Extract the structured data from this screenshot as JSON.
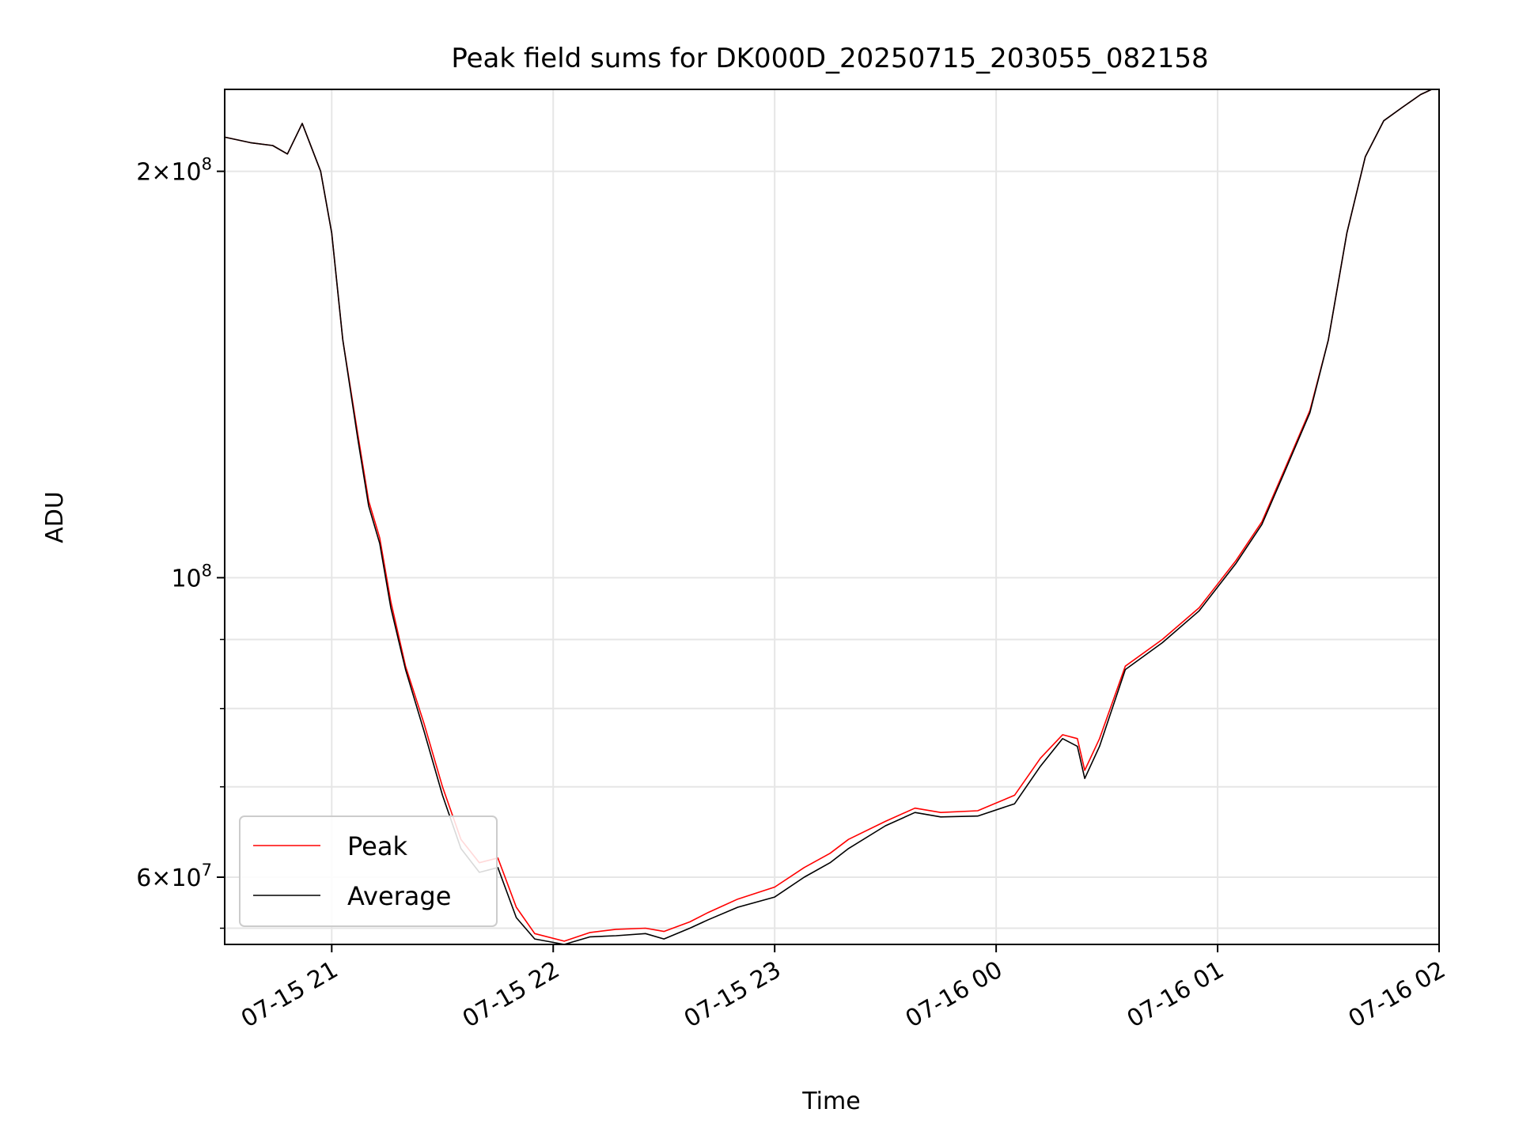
{
  "chart_data": {
    "type": "line",
    "title": "Peak field sums for DK000D_20250715_203055_082158",
    "xlabel": "Time",
    "ylabel": "ADU",
    "yscale": "log",
    "xlim": [
      "2025-07-15 20:31",
      "2025-07-16 02:00"
    ],
    "ylim": [
      53500000,
      230000000
    ],
    "grid": true,
    "legend_position": "lower-left",
    "xticks": [
      "07-15 21",
      "07-15 22",
      "07-15 23",
      "07-16 00",
      "07-16 01",
      "07-16 02"
    ],
    "xtick_times": [
      "2025-07-15 21:00",
      "2025-07-15 22:00",
      "2025-07-15 23:00",
      "2025-07-16 00:00",
      "2025-07-16 01:00",
      "2025-07-16 02:00"
    ],
    "yticks_major": [
      {
        "value": 60000000,
        "mantissa": "6",
        "exponent": "7"
      },
      {
        "value": 100000000,
        "mantissa": "",
        "exponent": "8"
      },
      {
        "value": 200000000,
        "mantissa": "2",
        "exponent": "8"
      }
    ],
    "yticks_minor": [
      55000000,
      70000000,
      80000000,
      90000000
    ],
    "x": [
      "2025-07-15 20:31",
      "2025-07-15 20:38",
      "2025-07-15 20:44",
      "2025-07-15 20:48",
      "2025-07-15 20:52",
      "2025-07-15 20:57",
      "2025-07-15 21:00",
      "2025-07-15 21:03",
      "2025-07-15 21:07",
      "2025-07-15 21:10",
      "2025-07-15 21:13",
      "2025-07-15 21:16",
      "2025-07-15 21:20",
      "2025-07-15 21:25",
      "2025-07-15 21:30",
      "2025-07-15 21:35",
      "2025-07-15 21:40",
      "2025-07-15 21:45",
      "2025-07-15 21:50",
      "2025-07-15 21:55",
      "2025-07-15 22:03",
      "2025-07-15 22:10",
      "2025-07-15 22:17",
      "2025-07-15 22:25",
      "2025-07-15 22:30",
      "2025-07-15 22:37",
      "2025-07-15 22:42",
      "2025-07-15 22:50",
      "2025-07-15 23:00",
      "2025-07-15 23:08",
      "2025-07-15 23:15",
      "2025-07-15 23:20",
      "2025-07-15 23:30",
      "2025-07-15 23:38",
      "2025-07-15 23:45",
      "2025-07-15 23:55",
      "2025-07-16 00:05",
      "2025-07-16 00:12",
      "2025-07-16 00:18",
      "2025-07-16 00:22",
      "2025-07-16 00:24",
      "2025-07-16 00:28",
      "2025-07-16 00:35",
      "2025-07-16 00:45",
      "2025-07-16 00:55",
      "2025-07-16 01:05",
      "2025-07-16 01:12",
      "2025-07-16 01:18",
      "2025-07-16 01:25",
      "2025-07-16 01:30",
      "2025-07-16 01:35",
      "2025-07-16 01:40",
      "2025-07-16 01:45",
      "2025-07-16 01:50",
      "2025-07-16 01:55",
      "2025-07-16 01:58"
    ],
    "series": [
      {
        "name": "Peak",
        "color": "#ff0000",
        "values": [
          212000000,
          210000000,
          209000000,
          206000000,
          217000000,
          200000000,
          180000000,
          150000000,
          128000000,
          114000000,
          107000000,
          96000000,
          86000000,
          78000000,
          70000000,
          64000000,
          61500000,
          62000000,
          57000000,
          54500000,
          53800000,
          54600000,
          54900000,
          55000000,
          54700000,
          55600000,
          56500000,
          57800000,
          59000000,
          61000000,
          62500000,
          64000000,
          66000000,
          67500000,
          67000000,
          67200000,
          69000000,
          73500000,
          76500000,
          76000000,
          72000000,
          76000000,
          86000000,
          90000000,
          95000000,
          103000000,
          110000000,
          120000000,
          133000000,
          150000000,
          180000000,
          205000000,
          218000000,
          223000000,
          228000000,
          230000000
        ]
      },
      {
        "name": "Average",
        "color": "#000000",
        "values": [
          212000000,
          210000000,
          209000000,
          206000000,
          217000000,
          200000000,
          180000000,
          150000000,
          127000000,
          113000000,
          106000000,
          95000000,
          85500000,
          77000000,
          69000000,
          63000000,
          60500000,
          61000000,
          56000000,
          54000000,
          53500000,
          54200000,
          54300000,
          54500000,
          54000000,
          55000000,
          55800000,
          57000000,
          58000000,
          60000000,
          61500000,
          63000000,
          65500000,
          67000000,
          66500000,
          66600000,
          68000000,
          72500000,
          76000000,
          75000000,
          71000000,
          75000000,
          85500000,
          89500000,
          94500000,
          102500000,
          109500000,
          119500000,
          132500000,
          150000000,
          180000000,
          205000000,
          218000000,
          223000000,
          228000000,
          230000000
        ]
      }
    ],
    "legend": [
      "Peak",
      "Average"
    ]
  }
}
